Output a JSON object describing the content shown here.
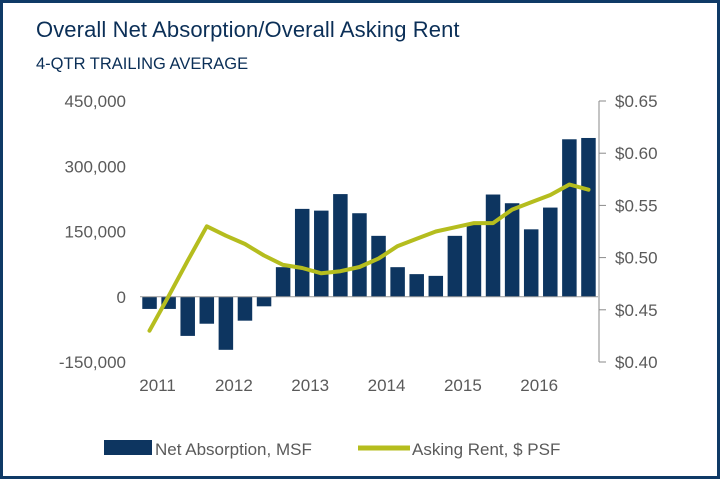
{
  "chart_data": {
    "type": "bar+line",
    "title": "Overall Net Absorption/Overall Asking Rent",
    "subtitle": "4-QTR TRAILING AVERAGE",
    "x_labels": [
      "2011",
      "2012",
      "2013",
      "2014",
      "2015",
      "2016"
    ],
    "quarters": [
      "2011Q1",
      "2011Q2",
      "2011Q3",
      "2011Q4",
      "2012Q1",
      "2012Q2",
      "2012Q3",
      "2012Q4",
      "2013Q1",
      "2013Q2",
      "2013Q3",
      "2013Q4",
      "2014Q1",
      "2014Q2",
      "2014Q3",
      "2014Q4",
      "2015Q1",
      "2015Q2",
      "2015Q3",
      "2015Q4",
      "2016Q1",
      "2016Q2",
      "2016Q3",
      "2016Q4"
    ],
    "left_axis": {
      "ylim": [
        -150000,
        450000
      ],
      "ticks": [
        -150000,
        0,
        150000,
        300000,
        450000
      ],
      "tick_labels": [
        "-150,000",
        "0",
        "150,000",
        "300,000",
        "450,000"
      ]
    },
    "right_axis": {
      "ylim": [
        0.4,
        0.65
      ],
      "ticks": [
        0.4,
        0.45,
        0.5,
        0.55,
        0.6,
        0.65
      ],
      "tick_labels": [
        "$0.40",
        "$0.45",
        "$0.50",
        "$0.55",
        "$0.60",
        "$0.65"
      ]
    },
    "series": [
      {
        "name": "Net Absorption, MSF",
        "type": "bar",
        "axis": "left",
        "color": "#0d3560",
        "values": [
          -28000,
          -28000,
          -90000,
          -62000,
          -122000,
          -55000,
          -22000,
          68000,
          202000,
          198000,
          236000,
          192000,
          140000,
          68000,
          52000,
          48000,
          140000,
          170000,
          235000,
          215000,
          155000,
          205000,
          362000,
          365000
        ]
      },
      {
        "name": "Asking Rent, $ PSF",
        "type": "line",
        "axis": "right",
        "color": "#b5bd1e",
        "values": [
          0.43,
          0.463,
          0.497,
          0.53,
          0.521,
          0.513,
          0.502,
          0.493,
          0.49,
          0.485,
          0.487,
          0.491,
          0.499,
          0.511,
          0.518,
          0.525,
          0.529,
          0.533,
          0.533,
          0.546,
          0.553,
          0.56,
          0.57,
          0.565
        ]
      }
    ],
    "legend_position": "bottom"
  }
}
